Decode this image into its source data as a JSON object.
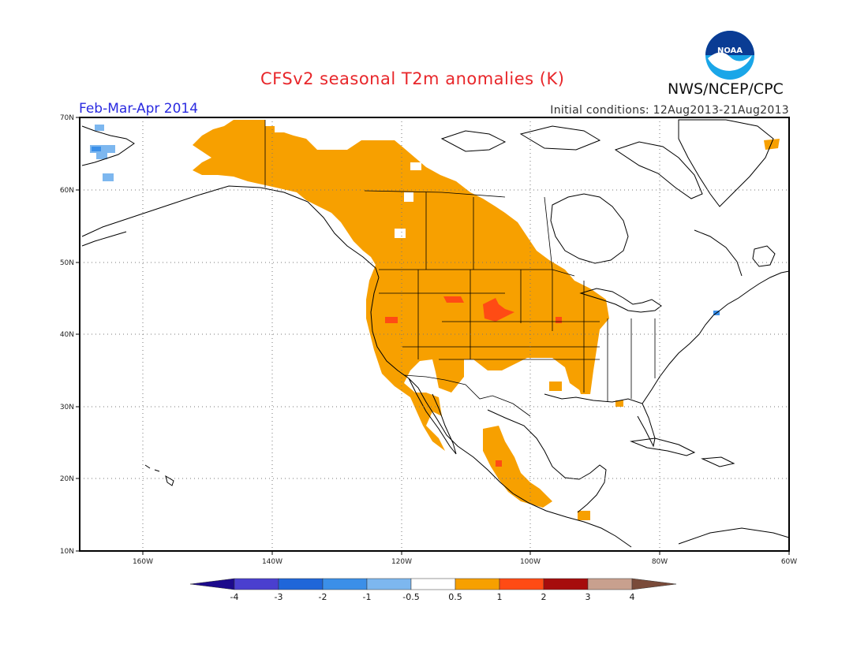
{
  "title": "CFSv2 seasonal T2m anomalies (K)",
  "period": "Feb-Mar-Apr 2014",
  "initial_conditions": "Initial conditions: 12Aug2013-21Aug2013",
  "agency": "NWS/NCEP/CPC",
  "logo_text": "NOAA",
  "map": {
    "lat_range": [
      10,
      70
    ],
    "lon_range": [
      -172,
      -60
    ],
    "lat_labels": [
      "70N",
      "60N",
      "50N",
      "40N",
      "30N",
      "20N",
      "10N"
    ],
    "lon_labels": [
      "160W",
      "140W",
      "120W",
      "100W",
      "80W",
      "60W"
    ],
    "grid": "dotted"
  },
  "colorbar": {
    "labels": [
      "-4",
      "-3",
      "-2",
      "-1",
      "-0.5",
      "0.5",
      "1",
      "2",
      "3",
      "4"
    ],
    "colors": [
      "#1c0a8c",
      "#4a3fcf",
      "#1f66d9",
      "#3b8fe8",
      "#7db7ef",
      "#ffffff",
      "#f7a000",
      "#ff4b14",
      "#a60c0c",
      "#c8a08e",
      "#7a4b3a"
    ]
  }
}
